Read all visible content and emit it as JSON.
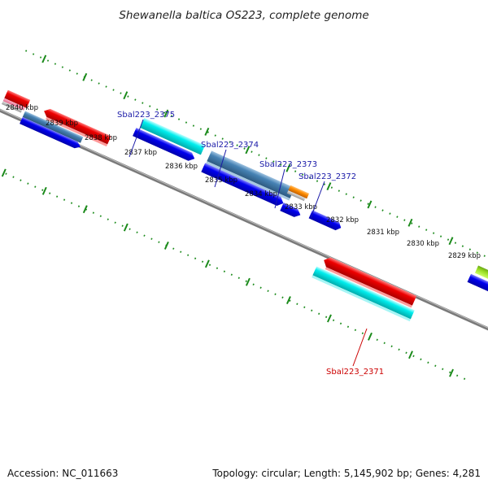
{
  "title": "Shewanella baltica OS223, complete genome",
  "footer": {
    "accession": "Accession: NC_011663",
    "summary": "Topology: circular; Length: 5,145,902 bp; Genes: 4,281"
  },
  "ticks": [
    "2840 kbp",
    "2839 kbp",
    "2838 kbp",
    "2837 kbp",
    "2836 kbp",
    "2835 kbp",
    "2834 kbp",
    "2833 kbp",
    "2832 kbp",
    "2831 kbp",
    "2830 kbp",
    "2829 kbp"
  ],
  "gene_labels": [
    {
      "text": "Sbal223_2375",
      "color": "#1a1aa8"
    },
    {
      "text": "Sbal223_2374",
      "color": "#1a1aa8"
    },
    {
      "text": "Sbal223_2373",
      "color": "#1a1aa8"
    },
    {
      "text": "Sbal223_2372",
      "color": "#1a1aa8"
    },
    {
      "text": "Sbal223_2371",
      "color": "#cc0000"
    }
  ],
  "colors": {
    "backbone": "#808080",
    "tick_dots": "#1a8a1a",
    "cds_blue": "#0000ee",
    "cds_red": "#ee0000",
    "cds_cyan": "#00eeee",
    "cds_steel": "#4682b4",
    "cds_orange": "#ff8c00",
    "cds_lime": "#99dd22"
  }
}
